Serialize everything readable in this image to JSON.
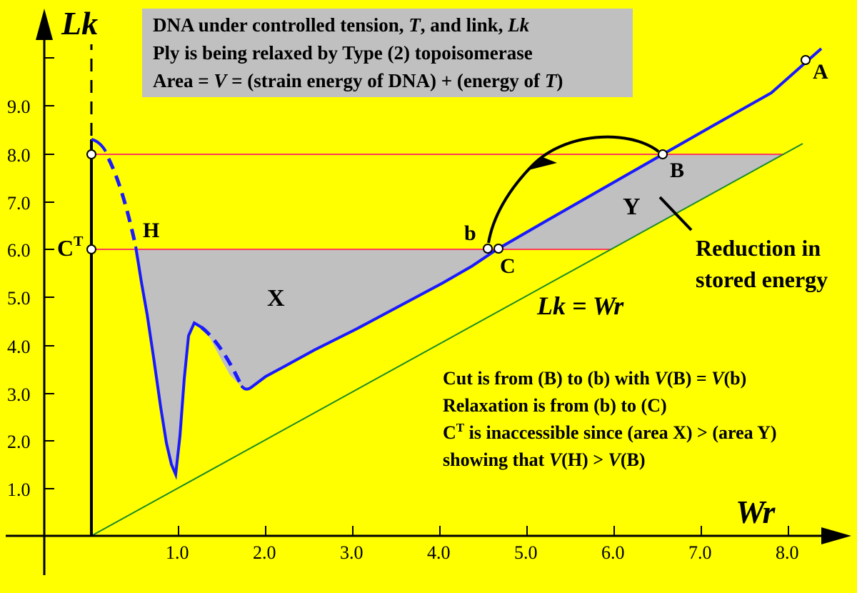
{
  "colors": {
    "background": "#ffff00",
    "curve": "#1a1aff",
    "reference_lines": "#ff3b5c",
    "diagonal": "#1a8a2a",
    "shaded_area": "#c0c0c0",
    "info_box": "#c0c0c0"
  },
  "axes": {
    "x_title": "Wr",
    "y_title": "Lk",
    "x_ticks": [
      "1.0",
      "2.0",
      "3.0",
      "4.0",
      "5.0",
      "6.0",
      "7.0",
      "8.0"
    ],
    "y_ticks": [
      "1.0",
      "2.0",
      "3.0",
      "4.0",
      "5.0",
      "6.0",
      "7.0",
      "8.0",
      "9.0"
    ]
  },
  "info_box": {
    "line1_a": "DNA under controlled tension, ",
    "line1_b": "T",
    "line1_c": ", and link, ",
    "line1_d": "Lk",
    "line2": "Ply is being relaxed by Type (2) topoisomerase",
    "line3_a": "Area = ",
    "line3_b": "V",
    "line3_c": " = (strain energy of DNA) + (energy of ",
    "line3_d": "T",
    "line3_e": ")"
  },
  "labels": {
    "A": "A",
    "B": "B",
    "b": "b",
    "C": "C",
    "CT_base": "C",
    "CT_sup": "T",
    "H": "H",
    "X": "X",
    "Y": "Y",
    "diagonal_label": "Lk = Wr",
    "reduction_line1": "Reduction in",
    "reduction_line2": "stored energy"
  },
  "notes": {
    "line1_a": "Cut is from (B) to (b) with ",
    "line1_b": "V",
    "line1_c": "(B) = ",
    "line1_d": "V",
    "line1_e": "(b)",
    "line2": "Relaxation is from (b) to (C)",
    "line3_a": "C",
    "line3_sup": "T",
    "line3_b": " is inaccessible since (area X) > (area Y)",
    "line4_a": "showing that ",
    "line4_b": "V",
    "line4_c": "(H) > ",
    "line4_d": "V",
    "line4_e": "(B)"
  }
}
